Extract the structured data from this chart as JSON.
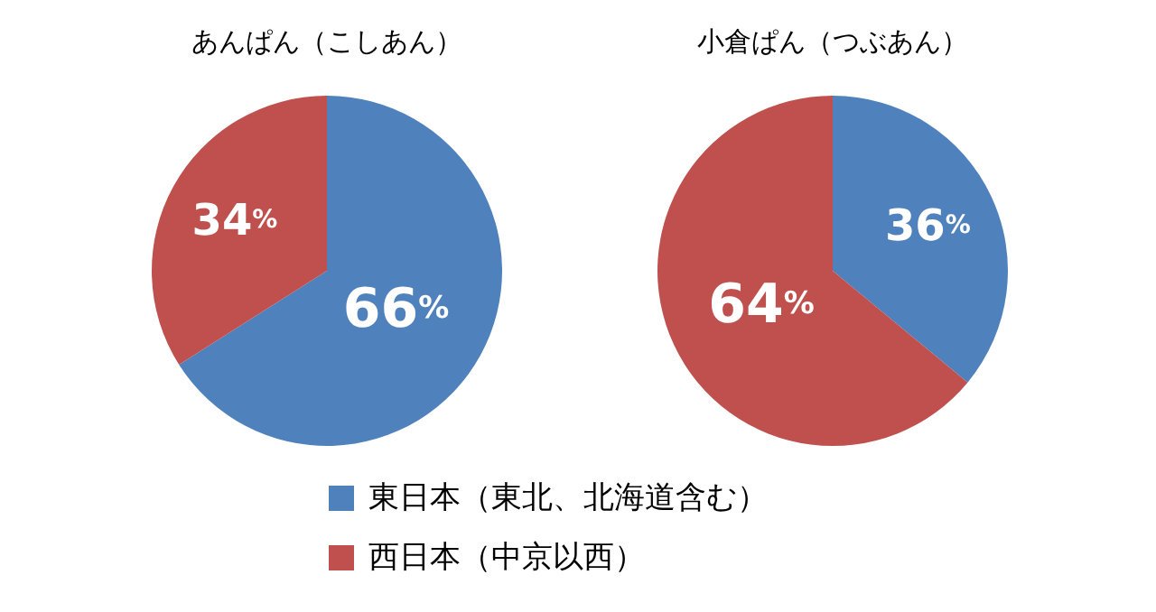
{
  "chart_data": [
    {
      "type": "pie",
      "title": "あんぱん（こしあん）",
      "categories": [
        "東日本（東北、北海道含む）",
        "西日本（中京以西）"
      ],
      "values": [
        66,
        34
      ],
      "colors": [
        "#4f81bd",
        "#c0504d"
      ],
      "value_labels": [
        "66%",
        "34%"
      ],
      "legend": "bottom"
    },
    {
      "type": "pie",
      "title": "小倉ぱん（つぶあん）",
      "categories": [
        null,
        null
      ],
      "values": [
        36,
        64
      ],
      "colors": [
        "#4f81bd",
        "#c0504d"
      ],
      "value_labels": [
        "36%",
        "64%"
      ]
    }
  ]
}
